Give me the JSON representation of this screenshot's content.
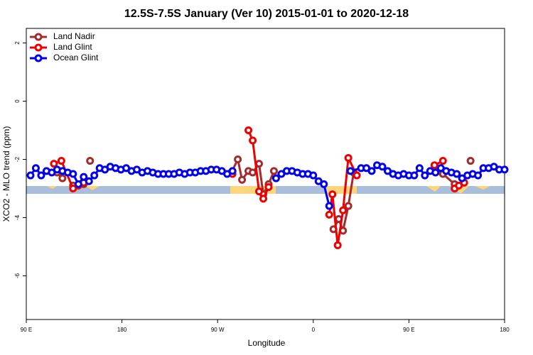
{
  "chart_data": {
    "type": "line",
    "title": "12.5S-7.5S January (Ver 10)   2015-01-01 to 2020-12-18",
    "x_label": "Longitude",
    "y_label": "XCO2 - MLO trend (ppm)",
    "xlim": [
      90,
      540
    ],
    "ylim": [
      -7.5,
      2.5
    ],
    "xticks": [
      {
        "value": 90,
        "label": "90 E"
      },
      180,
      {
        "value": 270,
        "label": "90 W"
      },
      {
        "value": 360,
        "label": "0"
      },
      {
        "value": 450,
        "label": "90 E"
      },
      {
        "value": 540,
        "label": "180"
      }
    ],
    "yticks": [
      -6,
      -4,
      -2,
      0,
      2
    ],
    "legend": "topleft",
    "series": [
      {
        "name": "Land Nadir",
        "color": "#a52a2a",
        "x": [
          119,
          124,
          129,
          134,
          144,
          147,
          150,
          200,
          283,
          289,
          293,
          299,
          303,
          309,
          313,
          318,
          323,
          350,
          379,
          384,
          388,
          393,
          398,
          440,
          478,
          482,
          493,
          500,
          508
        ],
        "values": [
          -2.45,
          -2.65,
          null,
          -2.9,
          -2.85,
          null,
          -2.05,
          null,
          -2.45,
          -2.0,
          -2.7,
          -2.4,
          -2.45,
          -2.15,
          -3.2,
          -2.85,
          -2.4,
          null,
          -4.4,
          -4.05,
          -4.45,
          -3.6,
          -2.45,
          null,
          -2.4,
          -2.5,
          -2.85,
          null,
          -2.05
        ]
      },
      {
        "name": "Land Glint",
        "color": "#ee0000",
        "x": [
          116,
          123,
          134,
          139,
          144,
          200,
          284,
          290,
          299,
          303,
          309,
          313,
          318,
          350,
          375,
          378,
          383,
          388,
          393,
          401,
          440,
          474,
          482,
          487,
          493,
          497,
          502
        ],
        "values": [
          -2.15,
          -2.05,
          -3.0,
          -2.9,
          -2.8,
          null,
          -2.5,
          null,
          -1.0,
          -1.35,
          -3.1,
          -3.35,
          -2.95,
          null,
          -3.9,
          -3.2,
          -4.95,
          -3.75,
          -1.95,
          -2.55,
          null,
          -2.2,
          -2.05,
          null,
          -3.0,
          -2.9,
          -2.8
        ]
      },
      {
        "name": "Ocean Glint",
        "color": "#0000ee",
        "x": [
          94,
          99,
          104,
          109,
          114,
          119,
          124,
          129,
          134,
          139,
          144,
          149,
          154,
          159,
          164,
          169,
          174,
          179,
          184,
          189,
          194,
          199,
          204,
          209,
          214,
          219,
          224,
          229,
          234,
          239,
          244,
          249,
          254,
          259,
          264,
          269,
          274,
          279,
          284,
          300,
          325,
          330,
          335,
          340,
          345,
          350,
          355,
          360,
          365,
          370,
          375,
          385,
          395,
          405,
          410,
          415,
          420,
          425,
          430,
          435,
          440,
          445,
          450,
          455,
          460,
          465,
          470,
          475,
          480,
          485,
          490,
          495,
          500,
          505,
          510,
          515,
          520,
          525,
          530,
          535,
          540
        ],
        "values": [
          -2.55,
          -2.3,
          -2.55,
          -2.4,
          -2.45,
          -2.35,
          -2.4,
          -2.45,
          -2.5,
          -2.85,
          -2.6,
          -2.75,
          -2.55,
          -2.3,
          -2.35,
          -2.25,
          -2.3,
          -2.35,
          -2.3,
          -2.4,
          -2.35,
          -2.45,
          -2.4,
          -2.45,
          -2.5,
          -2.5,
          -2.5,
          -2.5,
          -2.45,
          -2.5,
          -2.45,
          -2.45,
          -2.4,
          -2.4,
          -2.35,
          -2.35,
          -2.4,
          -2.5,
          -2.4,
          null,
          -2.65,
          -2.5,
          -2.4,
          -2.4,
          -2.45,
          -2.5,
          -2.5,
          -2.55,
          -2.75,
          -2.85,
          -3.6,
          null,
          -2.4,
          -2.3,
          -2.3,
          -2.4,
          -2.2,
          -2.25,
          -2.4,
          -2.5,
          -2.55,
          -2.5,
          -2.55,
          -2.55,
          -2.3,
          -2.55,
          -2.4,
          -2.45,
          -2.3,
          -2.4,
          -2.45,
          -2.5,
          -2.65,
          -2.55,
          -2.5,
          -2.55,
          -2.3,
          -2.3,
          -2.25,
          -2.35,
          -2.35
        ]
      }
    ]
  }
}
